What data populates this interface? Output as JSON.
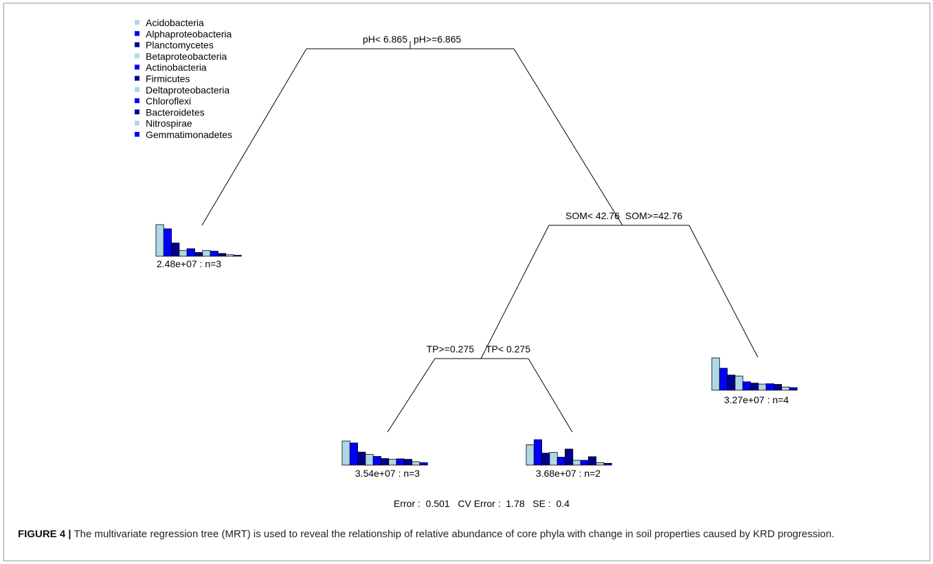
{
  "legend": {
    "items": [
      {
        "label": "Acidobacteria",
        "color": "#add8e6"
      },
      {
        "label": "Alphaproteobacteria",
        "color": "#0000ff"
      },
      {
        "label": "Planctomycetes",
        "color": "#00008b"
      },
      {
        "label": "Betaproteobacteria",
        "color": "#add8e6"
      },
      {
        "label": "Actinobacteria",
        "color": "#0000ff"
      },
      {
        "label": "Firmicutes",
        "color": "#00008b"
      },
      {
        "label": "Deltaproteobacteria",
        "color": "#add8e6"
      },
      {
        "label": "Chloroflexi",
        "color": "#0000ff"
      },
      {
        "label": "Bacteroidetes",
        "color": "#00008b"
      },
      {
        "label": "Nitrospirae",
        "color": "#add8e6"
      },
      {
        "label": "Gemmatimonadetes",
        "color": "#0000ff"
      }
    ]
  },
  "splits": {
    "root": {
      "left": "pH< 6.865",
      "right": "pH>=6.865"
    },
    "som": {
      "left": "SOM< 42.76",
      "right": "SOM>=42.76"
    },
    "tp": {
      "left": "TP>=0.275",
      "right": "TP< 0.275"
    }
  },
  "leaves": [
    {
      "id": "leaf1",
      "label": "2.48e+07 : n=3",
      "values": [
        1.0,
        0.87,
        0.42,
        0.18,
        0.24,
        0.12,
        0.18,
        0.16,
        0.09,
        0.05,
        0.03
      ]
    },
    {
      "id": "leaf2",
      "label": "3.54e+07 : n=3",
      "values": [
        1.0,
        0.92,
        0.54,
        0.45,
        0.36,
        0.27,
        0.24,
        0.26,
        0.24,
        0.14,
        0.1
      ]
    },
    {
      "id": "leaf3",
      "label": "3.68e+07 : n=2",
      "values": [
        0.8,
        1.0,
        0.47,
        0.5,
        0.31,
        0.63,
        0.19,
        0.19,
        0.33,
        0.1,
        0.07
      ]
    },
    {
      "id": "leaf4",
      "label": "3.27e+07 : n=4",
      "values": [
        1.0,
        0.68,
        0.47,
        0.44,
        0.26,
        0.22,
        0.19,
        0.2,
        0.18,
        0.1,
        0.08
      ]
    }
  ],
  "stats": "Error :  0.501   CV Error :  1.78   SE :  0.4",
  "caption": {
    "label": "FIGURE 4 |",
    "text": " The multivariate regression tree (MRT) is used to reveal the relationship of relative abundance of core phyla with change in soil properties caused by KRD progression."
  }
}
